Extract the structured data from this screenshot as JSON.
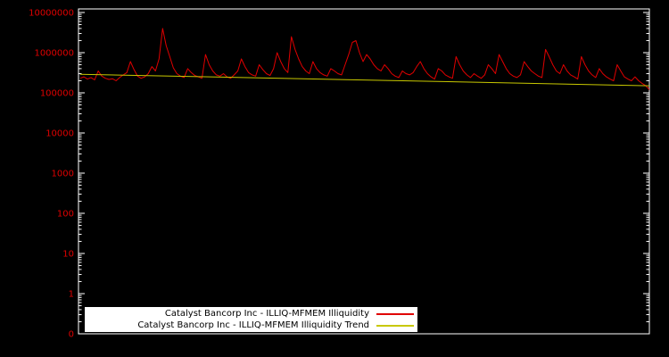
{
  "chart_data": {
    "type": "line",
    "title": "",
    "xlabel": "",
    "ylabel": "",
    "y_scale": "log",
    "grid": false,
    "legend_position": "bottom-center-inside",
    "background_color": "#000000",
    "axis_color": "#ffffff",
    "tick_label_color": "#e00000",
    "ytick_labels": [
      "10000000",
      "1000000",
      "100000",
      "10000",
      "1000",
      "100",
      "10",
      "1",
      "0"
    ],
    "ylim": [
      0.1,
      10000000
    ],
    "series": [
      {
        "name": "Catalyst Bancorp Inc - ILLIQ-MFMEM Illiquidity",
        "color": "#e00000",
        "values": [
          230000,
          250000,
          220000,
          240000,
          210000,
          350000,
          260000,
          230000,
          215000,
          225000,
          200000,
          240000,
          280000,
          320000,
          600000,
          380000,
          260000,
          230000,
          250000,
          300000,
          450000,
          350000,
          700000,
          4000000,
          1500000,
          800000,
          420000,
          300000,
          260000,
          240000,
          400000,
          320000,
          270000,
          250000,
          230000,
          900000,
          500000,
          350000,
          280000,
          260000,
          300000,
          250000,
          230000,
          280000,
          350000,
          700000,
          450000,
          320000,
          280000,
          260000,
          500000,
          380000,
          300000,
          270000,
          400000,
          1000000,
          600000,
          400000,
          320000,
          2500000,
          1200000,
          700000,
          450000,
          350000,
          300000,
          600000,
          400000,
          320000,
          280000,
          260000,
          400000,
          350000,
          300000,
          280000,
          500000,
          900000,
          1800000,
          2000000,
          1000000,
          600000,
          900000,
          700000,
          500000,
          400000,
          350000,
          500000,
          400000,
          300000,
          260000,
          240000,
          350000,
          300000,
          280000,
          320000,
          450000,
          600000,
          400000,
          300000,
          250000,
          220000,
          400000,
          350000,
          280000,
          250000,
          230000,
          800000,
          500000,
          350000,
          280000,
          240000,
          300000,
          260000,
          230000,
          280000,
          500000,
          400000,
          300000,
          900000,
          600000,
          400000,
          300000,
          260000,
          240000,
          280000,
          600000,
          450000,
          350000,
          300000,
          260000,
          240000,
          1200000,
          800000,
          500000,
          350000,
          300000,
          500000,
          350000,
          280000,
          250000,
          220000,
          800000,
          500000,
          350000,
          280000,
          240000,
          400000,
          300000,
          250000,
          220000,
          200000,
          500000,
          350000,
          250000,
          220000,
          200000,
          250000,
          200000,
          170000,
          150000,
          120000
        ]
      },
      {
        "name": "Catalyst Bancorp Inc - ILLIQ-MFMEM Illiquidity Trend",
        "color": "#c8c800",
        "trend": {
          "start": 290000,
          "end": 150000
        }
      }
    ]
  },
  "legend": {
    "items": [
      {
        "label": "Catalyst Bancorp Inc - ILLIQ-MFMEM Illiquidity",
        "color": "#e00000"
      },
      {
        "label": "Catalyst Bancorp Inc - ILLIQ-MFMEM Illiquidity Trend",
        "color": "#c8c800"
      }
    ]
  }
}
